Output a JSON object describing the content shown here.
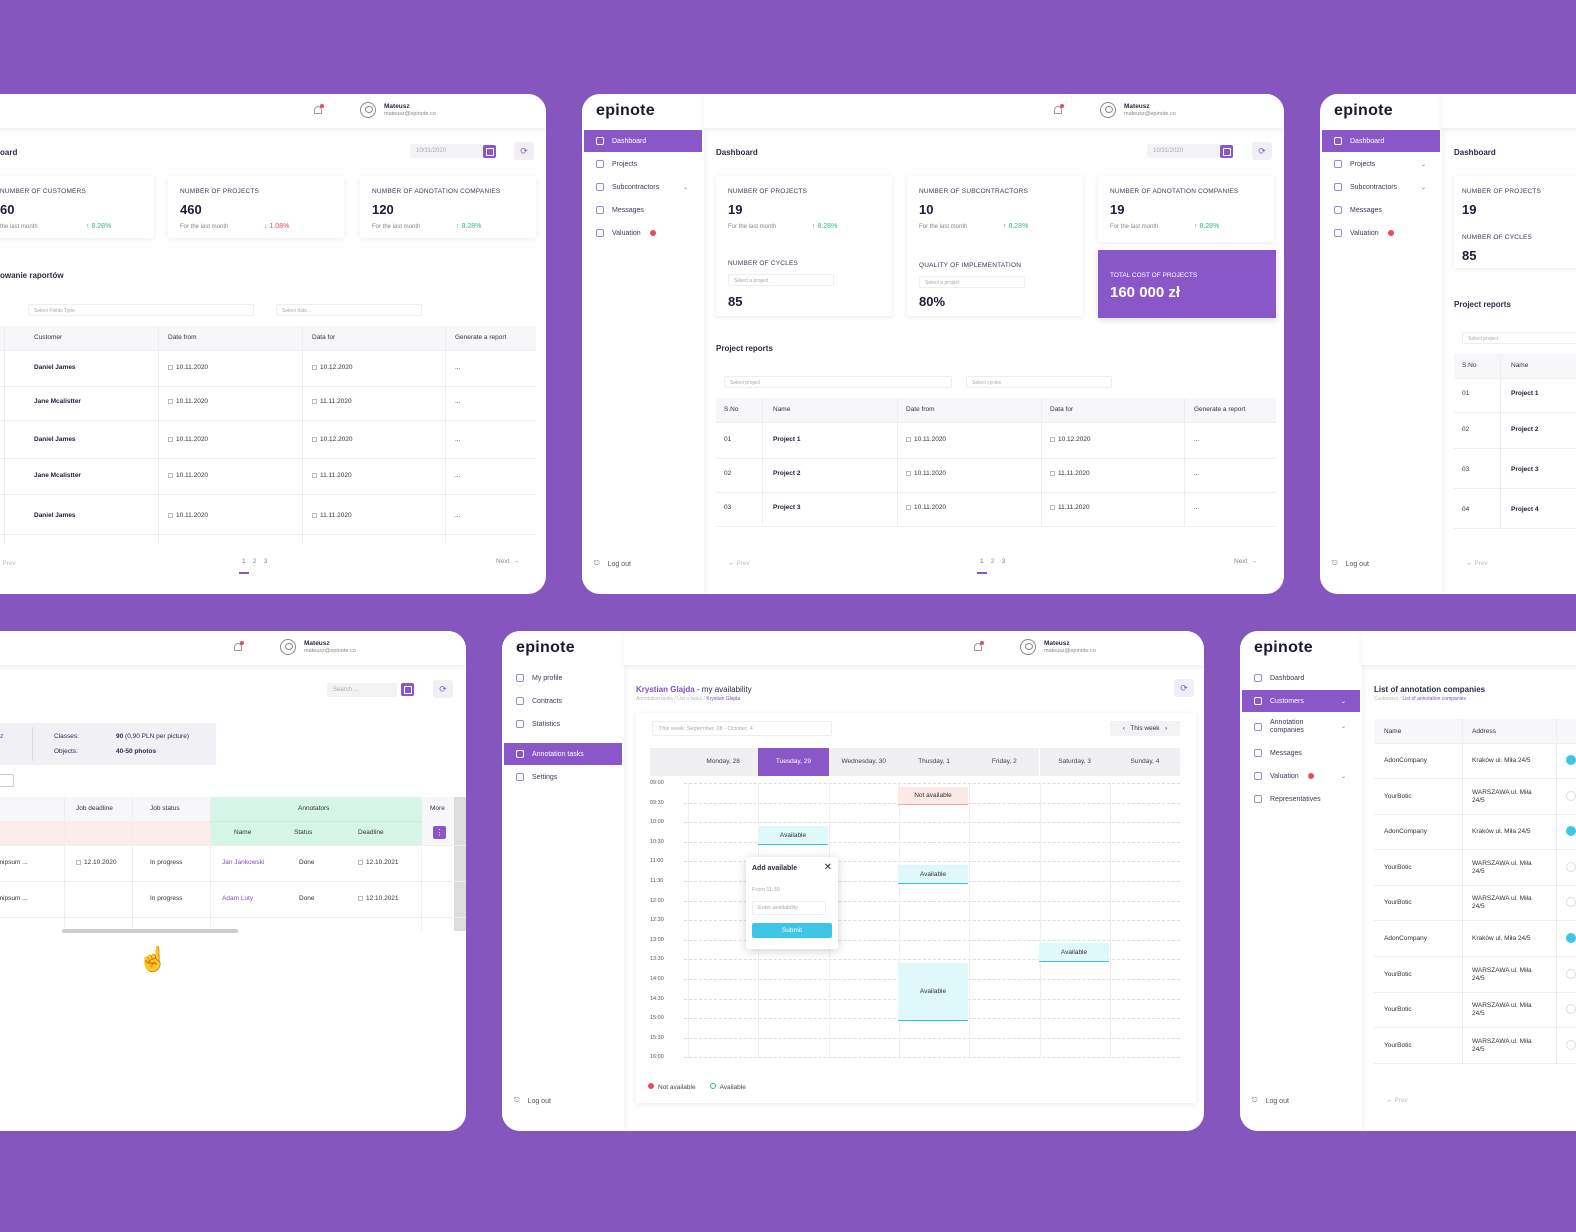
{
  "user": {
    "name": "Mateusz",
    "email": "mateusz@epinote.co"
  },
  "logo": "epinote",
  "card1": {
    "title": "oard",
    "date": "10/31/2020",
    "stats": [
      {
        "label": "NUMBER OF CUSTOMERS",
        "value": "60",
        "sub": "the last month",
        "trend": "8.28%",
        "dir": "up"
      },
      {
        "label": "NUMBER OF PROJECTS",
        "value": "460",
        "sub": "For the last month",
        "trend": "1.08%",
        "dir": "down"
      },
      {
        "label": "NUMBER OF ADNOTATION COMPANIES",
        "value": "120",
        "sub": "For the last month",
        "trend": "8.28%",
        "dir": "up"
      }
    ],
    "section": "owanie raportów",
    "filter1": "Select Fields Type",
    "filter2": "Select date...",
    "columns": [
      "Customer",
      "Date from",
      "Data for",
      "Generate a report"
    ],
    "rows": [
      [
        "Daniel James",
        "10.11.2020",
        "10.12.2020",
        "..."
      ],
      [
        "Jane Mcalistter",
        "10.11.2020",
        "11.11.2020",
        "..."
      ],
      [
        "Daniel James",
        "10.11.2020",
        "10.12.2020",
        "..."
      ],
      [
        "Jane Mcalistter",
        "10.11.2020",
        "11.11.2020",
        "..."
      ],
      [
        "Daniel James",
        "10.11.2020",
        "11.11.2020",
        "..."
      ]
    ],
    "prev": "Prev",
    "pages": [
      "1",
      "2",
      "3"
    ],
    "next": "Next"
  },
  "card2": {
    "nav": [
      "Dashboard",
      "Projects",
      "Subcontractors",
      "Messages",
      "Valuation"
    ],
    "logout": "Log out",
    "title": "Dashboard",
    "date": "10/31/2020",
    "stats": [
      {
        "label": "NUMBER OF PROJECTS",
        "value": "19",
        "sub": "For the last month",
        "trend": "8.28%"
      },
      {
        "label": "NUMBER OF SUBCONTRACTORS",
        "value": "10",
        "sub": "For the last month",
        "trend": "8.28%"
      },
      {
        "label": "NUMBER OF ADNOTATION COMPANIES",
        "value": "19",
        "sub": "For the last month",
        "trend": "8.28%"
      }
    ],
    "cycles": {
      "label": "NUMBER OF CYCLES",
      "select": "Select a project",
      "value": "85"
    },
    "quality": {
      "label": "QUALITY OF IMPLEMENTATION",
      "select": "Select a project",
      "value": "80%"
    },
    "cost": {
      "label": "TOTAL COST OF PROJECTS",
      "value": "160 000 zł"
    },
    "section": "Project reports",
    "filter1": "Select project",
    "filter2": "Select cycles",
    "columns": [
      "S.No",
      "Name",
      "Date from",
      "Data for",
      "Generate a report"
    ],
    "rows": [
      [
        "01",
        "Project 1",
        "10.11.2020",
        "10.12.2020",
        "..."
      ],
      [
        "02",
        "Project 2",
        "10.11.2020",
        "11.11.2020",
        "..."
      ],
      [
        "03",
        "Project 3",
        "10.11.2020",
        "11.11.2020",
        "..."
      ]
    ],
    "prev": "Prev",
    "pages": [
      "1",
      "2",
      "3"
    ],
    "next": "Next"
  },
  "card3": {
    "nav": [
      "Dashboard",
      "Projects",
      "Subcontractors",
      "Messages",
      "Valuation"
    ],
    "logout": "Log out",
    "title": "Dashboard",
    "stat1": {
      "label": "NUMBER OF PROJECTS",
      "value": "19"
    },
    "stat2": {
      "label": "NUMBER OF CYCLES",
      "value": "85"
    },
    "section": "Project reports",
    "filter": "Select project",
    "columns": [
      "S.No",
      "Name"
    ],
    "rows": [
      [
        "01",
        "Project 1"
      ],
      [
        "02",
        "Project 2"
      ],
      [
        "03",
        "Project 3"
      ],
      [
        "04",
        "Project 4"
      ]
    ],
    "prev": "Prev"
  },
  "card4": {
    "search": "Search ...",
    "info": {
      "lbl1": "Classes:",
      "val1": "90",
      "val1b": "(0,90 PLN per picture)",
      "lbl2": "Objects:",
      "val2": "40-50 photos",
      "left": "z"
    },
    "columns": [
      "Job deadline",
      "Job status",
      "Annotators",
      "More"
    ],
    "subcolumns": [
      "Name",
      "Status",
      "Deadline"
    ],
    "rows": [
      [
        "emipsum ...",
        "12.10.2020",
        "In progress",
        "Jan Jankowski",
        "Done",
        "12.10.2021"
      ],
      [
        "emipsum ...",
        "",
        "In progress",
        "Adam Luty",
        "Done",
        "12.10.2021"
      ]
    ]
  },
  "card5": {
    "nav": [
      "My profile",
      "Contracts",
      "Statistics",
      "Annotation tasks",
      "Settings"
    ],
    "logout": "Log out",
    "title": "Krystian Glajda",
    "title2": "- my availability",
    "breadcrumb": "Annotation tasks / List a tasks /",
    "breadcrumb_cur": "Krystian Glajda",
    "week_select": "This week: September, 28 - October, 4",
    "this_week": "This week",
    "days": [
      "Monday, 28",
      "Tuesday, 29",
      "Wednesday, 30",
      "Thusday, 1",
      "Friday, 2",
      "Saturday, 3",
      "Sunday, 4"
    ],
    "hours": [
      "09:00",
      "09:30",
      "10:00",
      "10:30",
      "11:00",
      "11:30",
      "12:00",
      "12:30",
      "13:00",
      "13:30",
      "14:00",
      "14:30",
      "15:00",
      "15:30",
      "16:00"
    ],
    "not_available": "Not available",
    "available": "Available",
    "popup": {
      "title": "Add available",
      "from": "From 11:30",
      "placeholder": "Enter availability",
      "submit": "Submit"
    },
    "legend": [
      "Not available",
      "Available"
    ]
  },
  "card6": {
    "nav": [
      "Dashboard",
      "Customers",
      "Annotation companies",
      "Messages",
      "Valuation",
      "Representatives"
    ],
    "logout": "Log out",
    "title": "List of annotation companies",
    "breadcrumb": "Customers /",
    "breadcrumb_cur": "List of annotation companies",
    "columns": [
      "Name",
      "Address"
    ],
    "rows": [
      [
        "AdonCompany",
        "Kraków ul. Miła 24/5"
      ],
      [
        "YourBotic",
        "WARSZAWA ul. Miła 24/5"
      ],
      [
        "AdonCompany",
        "Kraków ul. Miła 24/5"
      ],
      [
        "YourBotic",
        "WARSZAWA ul. Miła 24/5"
      ],
      [
        "YourBotic",
        "WARSZAWA ul. Miła 24/5"
      ],
      [
        "AdonCompany",
        "Kraków ul. Miła 24/5"
      ],
      [
        "YourBotic",
        "WARSZAWA ul. Miła 24/5"
      ],
      [
        "YourBotic",
        "WARSZAWA ul. Miła 24/5"
      ],
      [
        "YourBotic",
        "WARSZAWA ul. Miła 24/5"
      ]
    ],
    "prev": "Prev"
  },
  "colors": {
    "background": "#8557be",
    "accent": "#8a57c9",
    "up": "#2dbb8c",
    "down": "#e74c5c",
    "available": "#3ec6d4"
  }
}
